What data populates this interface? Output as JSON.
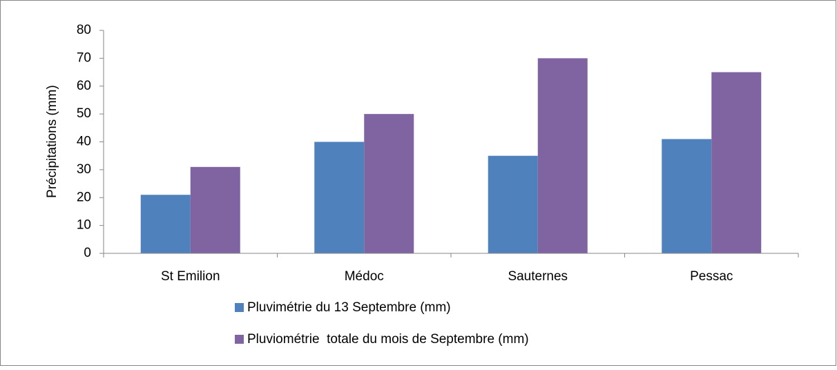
{
  "chart_data": {
    "type": "bar",
    "y_label": "Précipitations (mm)",
    "categories": [
      "St Emilion",
      "Médoc",
      "Sauternes",
      "Pessac"
    ],
    "series": [
      {
        "name": "Pluvimétrie du 13 Septembre (mm)",
        "color": "#4f81bd",
        "values": [
          21,
          40,
          35,
          41
        ]
      },
      {
        "name": "Pluviométrie  totale du mois de Septembre (mm)",
        "color": "#8064a2",
        "values": [
          31,
          50,
          70,
          65
        ]
      }
    ],
    "ylim": [
      0,
      80
    ],
    "yticks": [
      0,
      10,
      20,
      30,
      40,
      50,
      60,
      70,
      80
    ],
    "grid": false,
    "legend": "bottom"
  }
}
